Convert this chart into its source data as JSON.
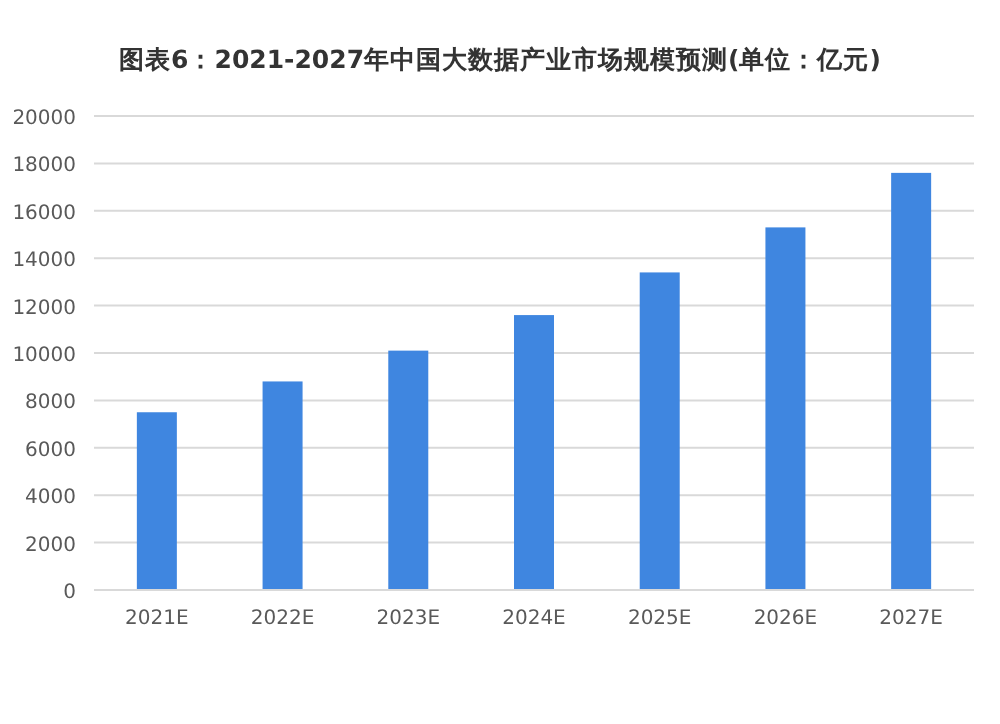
{
  "chart_data": {
    "type": "bar",
    "title": "图表6：2021-2027年中国大数据产业市场规模预测(单位：亿元)",
    "categories": [
      "2021E",
      "2022E",
      "2023E",
      "2024E",
      "2025E",
      "2026E",
      "2027E"
    ],
    "values": [
      7500,
      8800,
      10100,
      11600,
      13400,
      15300,
      17600
    ],
    "color": "#3f86e0",
    "ylim": [
      0,
      20000
    ],
    "yticks": [
      0,
      2000,
      4000,
      6000,
      8000,
      10000,
      12000,
      14000,
      16000,
      18000,
      20000
    ],
    "grid": "y"
  }
}
